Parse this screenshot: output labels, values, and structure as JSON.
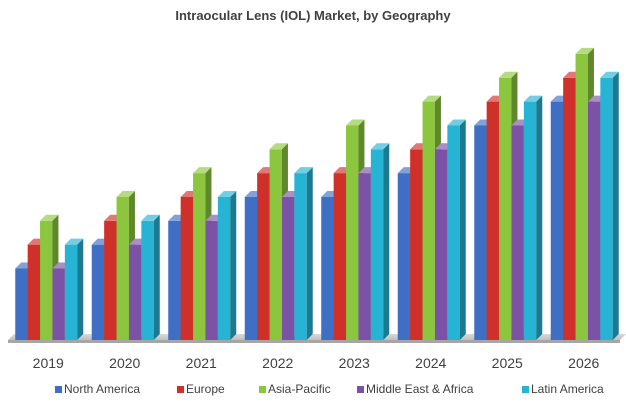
{
  "chart_data": {
    "type": "bar",
    "title": "Intraocular Lens (IOL) Market, by Geography",
    "xlabel": "",
    "ylabel": "",
    "categories": [
      "2019",
      "2020",
      "2021",
      "2022",
      "2023",
      "2024",
      "2025",
      "2026"
    ],
    "series": [
      {
        "name": "North America",
        "color": "#3f6fc4",
        "values": [
          3,
          4,
          5,
          6,
          6,
          7,
          9,
          10
        ]
      },
      {
        "name": "Europe",
        "color": "#d0302a",
        "values": [
          4,
          5,
          6,
          7,
          7,
          8,
          10,
          11
        ]
      },
      {
        "name": "Asia-Pacific",
        "color": "#8cc63f",
        "values": [
          5,
          6,
          7,
          8,
          9,
          10,
          11,
          12
        ]
      },
      {
        "name": "Middle East & Africa",
        "color": "#7b52a6",
        "values": [
          3,
          4,
          5,
          6,
          7,
          8,
          9,
          10
        ]
      },
      {
        "name": "Latin America",
        "color": "#27b3d4",
        "values": [
          4,
          5,
          6,
          7,
          8,
          9,
          10,
          11
        ]
      }
    ],
    "ylim": [
      0,
      12.5
    ],
    "grid": false,
    "legend_position": "bottom"
  }
}
